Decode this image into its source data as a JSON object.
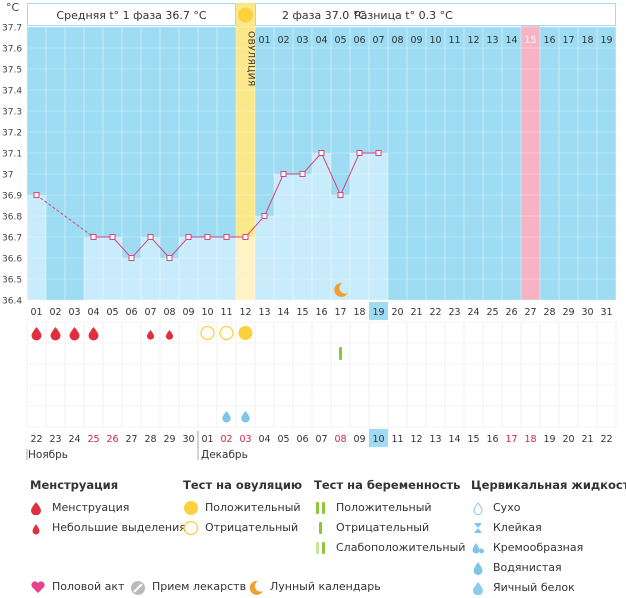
{
  "header": {
    "phase1_label": "Средняя t° 1 фаза",
    "phase1_value": "36.7 °C",
    "phase2_label": "2 фаза",
    "phase2_value": "37.0 °C",
    "diff_label": "Разница t°",
    "diff_value": "0.3 °C"
  },
  "chart_data": {
    "type": "line",
    "title": "",
    "ylabel": "°C",
    "ylim": [
      36.4,
      37.7
    ],
    "y_ticks": [
      "36.4",
      "36.5",
      "36.6",
      "36.7",
      "36.8",
      "36.9",
      "37",
      "37.1",
      "37.2",
      "37.3",
      "37.4",
      "37.5",
      "37.6",
      "37.7"
    ],
    "days": [
      "01",
      "02",
      "03",
      "04",
      "05",
      "06",
      "07",
      "08",
      "09",
      "10",
      "11",
      "12",
      "13",
      "14",
      "15",
      "16",
      "17",
      "18",
      "19",
      "20",
      "21",
      "22",
      "23",
      "24",
      "25",
      "26",
      "27",
      "28",
      "29",
      "30",
      "31"
    ],
    "temperature": [
      36.9,
      null,
      null,
      36.7,
      36.7,
      36.6,
      36.7,
      36.6,
      36.7,
      36.7,
      36.7,
      36.7,
      36.8,
      37.0,
      37.0,
      37.1,
      36.9,
      37.1,
      37.1,
      null,
      null,
      null,
      null,
      null,
      null,
      null,
      null,
      null,
      null,
      null,
      null
    ],
    "ovulation_day": 12,
    "ovulation_label": "ОВУЛЯЦИЯ",
    "today_day": 19,
    "highlight_day": 27,
    "phase2_top_days": [
      "01",
      "02",
      "03",
      "04",
      "05",
      "06",
      "07",
      "08",
      "09",
      "10",
      "11",
      "12",
      "13",
      "14",
      "15",
      "16",
      "17",
      "18",
      "19"
    ],
    "moon_day": 17,
    "menstruation_days": [
      1,
      2,
      3,
      4
    ],
    "spotting_days": [
      7,
      8
    ],
    "ovulation_test_negative_days": [
      10,
      11
    ],
    "ovulation_test_positive_days": [
      12
    ],
    "pregnancy_test_negative_days": [
      17
    ],
    "cervical_eggwhite_days": [
      11,
      12
    ],
    "calendar_dates": [
      "22",
      "23",
      "24",
      "25",
      "26",
      "27",
      "28",
      "29",
      "30",
      "01",
      "02",
      "03",
      "04",
      "05",
      "06",
      "07",
      "08",
      "09",
      "10",
      "11",
      "12",
      "13",
      "14",
      "15",
      "16",
      "17",
      "18",
      "19",
      "20",
      "21",
      "22"
    ],
    "calendar_red_indices": [
      3,
      4,
      10,
      11,
      16,
      25,
      26
    ],
    "month_start": "Ноябрь",
    "month_end": "Декабрь"
  },
  "legend": {
    "menstruation": {
      "title": "Менструация",
      "items": [
        "Менструация",
        "Небольшие выделения"
      ]
    },
    "ovulation_test": {
      "title": "Тест на овуляцию",
      "items": [
        "Положительный",
        "Отрицательный"
      ]
    },
    "pregnancy_test": {
      "title": "Тест на беременность",
      "items": [
        "Положительный",
        "Отрицательный",
        "Слабоположительный"
      ]
    },
    "cervical": {
      "title": "Цервикальная жидкость",
      "items": [
        "Сухо",
        "Клейкая",
        "Кремообразная",
        "Водянистая",
        "Яичный белок"
      ]
    }
  },
  "bottom": {
    "items": [
      "Половой акт",
      "Прием лекарств",
      "Лунный календарь"
    ]
  },
  "colors": {
    "bg_blue": "#9ddcf3",
    "bar_fill": "#c8ecfb",
    "ovulation_yellow": "#fbe88a",
    "highlight_pink": "#f7b3c4",
    "line_pink": "#d7467a",
    "drop_red": "#e0303f",
    "circle_yellow": "#fcd13c",
    "test_green": "#8cc63f",
    "cervical_blue": "#7fc4ea",
    "heart_pink": "#e8418c",
    "moon_orange": "#f0a030"
  }
}
